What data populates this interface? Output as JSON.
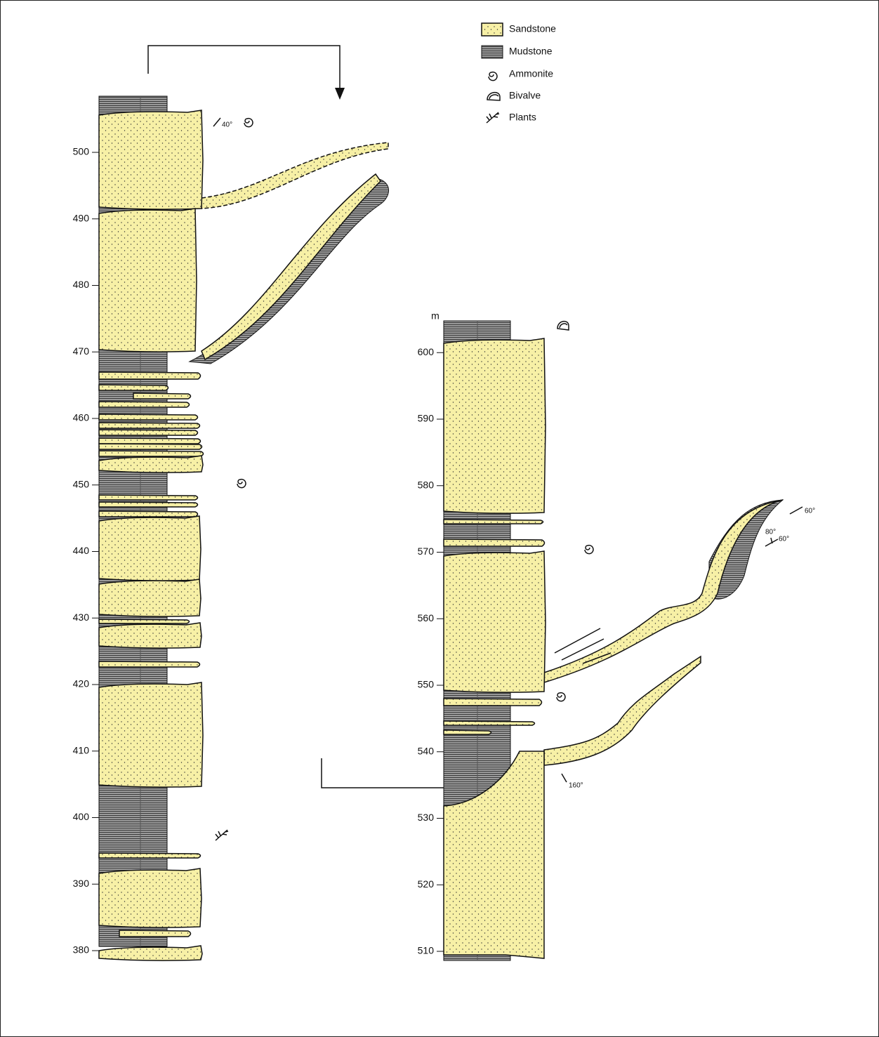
{
  "legend": {
    "items": [
      "Sandstone",
      "Mudstone",
      "Ammonite",
      "Bivalve",
      "Plants"
    ]
  },
  "columns": [
    {
      "ticks": [
        380,
        390,
        400,
        410,
        420,
        430,
        440,
        450,
        460,
        470,
        480,
        490,
        500
      ]
    },
    {
      "unit": "m",
      "ticks": [
        510,
        520,
        530,
        540,
        550,
        560,
        570,
        580,
        590,
        600
      ]
    }
  ],
  "annotations": [
    "40°",
    "60°",
    "80°",
    "60°",
    "160°"
  ]
}
